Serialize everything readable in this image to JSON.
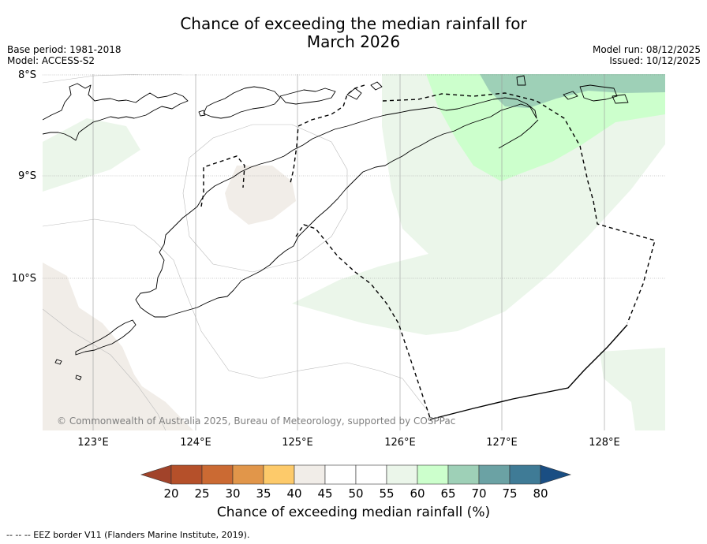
{
  "title_line1": "Chance of exceeding the median rainfall for",
  "title_line2": "March 2026",
  "meta_left": {
    "base_period": "Base period: 1981-2018",
    "model": "Model: ACCESS-S2"
  },
  "meta_right": {
    "model_run": "Model run: 08/12/2025",
    "issued": "Issued: 10/12/2025"
  },
  "lat_labels": [
    "8°S",
    "9°S",
    "10°S"
  ],
  "lon_labels": [
    "123°E",
    "124°E",
    "125°E",
    "126°E",
    "127°E",
    "128°E"
  ],
  "copyright": "© Commonwealth of Australia 2025, Bureau of Meteorology, supported by COSPPac",
  "colorbar": {
    "ticks": [
      "20",
      "25",
      "30",
      "35",
      "40",
      "45",
      "50",
      "55",
      "60",
      "65",
      "70",
      "75",
      "80"
    ],
    "colors": [
      "#b5502a",
      "#cb6a33",
      "#e1964a",
      "#fdca6a",
      "#f1ede8",
      "#ffffff",
      "#ffffff",
      "#ebf6ea",
      "#ccffcc",
      "#9ed0b7",
      "#6ba2a4",
      "#3f7b96"
    ],
    "under_color": "#a1432a",
    "over_color": "#1a4e83",
    "label": "Chance of exceeding median rainfall (%)"
  },
  "legend_note": "--  --  -- EEZ border V11 (Flanders Marine Institute, 2019)."
}
